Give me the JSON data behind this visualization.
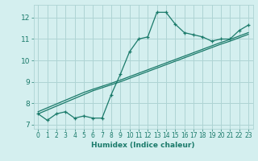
{
  "xlabel": "Humidex (Indice chaleur)",
  "bg_color": "#d4efef",
  "grid_color": "#aed4d4",
  "line_color": "#1a7a6a",
  "x_humidex": [
    0,
    1,
    2,
    3,
    4,
    5,
    6,
    7,
    8,
    9,
    10,
    11,
    12,
    13,
    14,
    15,
    16,
    17,
    18,
    19,
    20,
    21,
    22,
    23
  ],
  "y_curve": [
    7.5,
    7.2,
    7.5,
    7.6,
    7.3,
    7.4,
    7.3,
    7.3,
    8.4,
    9.35,
    10.4,
    11.0,
    11.1,
    12.25,
    12.25,
    11.7,
    11.3,
    11.2,
    11.1,
    10.9,
    11.0,
    11.0,
    11.4,
    11.65
  ],
  "y_linear1": [
    7.5,
    7.68,
    7.86,
    8.04,
    8.22,
    8.4,
    8.58,
    8.72,
    8.86,
    9.0,
    9.16,
    9.32,
    9.48,
    9.64,
    9.8,
    9.96,
    10.12,
    10.28,
    10.44,
    10.6,
    10.76,
    10.9,
    11.06,
    11.22
  ],
  "y_linear2": [
    7.6,
    7.78,
    7.96,
    8.14,
    8.32,
    8.5,
    8.65,
    8.79,
    8.93,
    9.08,
    9.24,
    9.4,
    9.56,
    9.72,
    9.88,
    10.04,
    10.2,
    10.36,
    10.52,
    10.68,
    10.84,
    10.98,
    11.14,
    11.3
  ],
  "ylim": [
    6.8,
    12.6
  ],
  "xlim": [
    -0.5,
    23.5
  ],
  "yticks": [
    7,
    8,
    9,
    10,
    11,
    12
  ],
  "xticks": [
    0,
    1,
    2,
    3,
    4,
    5,
    6,
    7,
    8,
    9,
    10,
    11,
    12,
    13,
    14,
    15,
    16,
    17,
    18,
    19,
    20,
    21,
    22,
    23
  ]
}
